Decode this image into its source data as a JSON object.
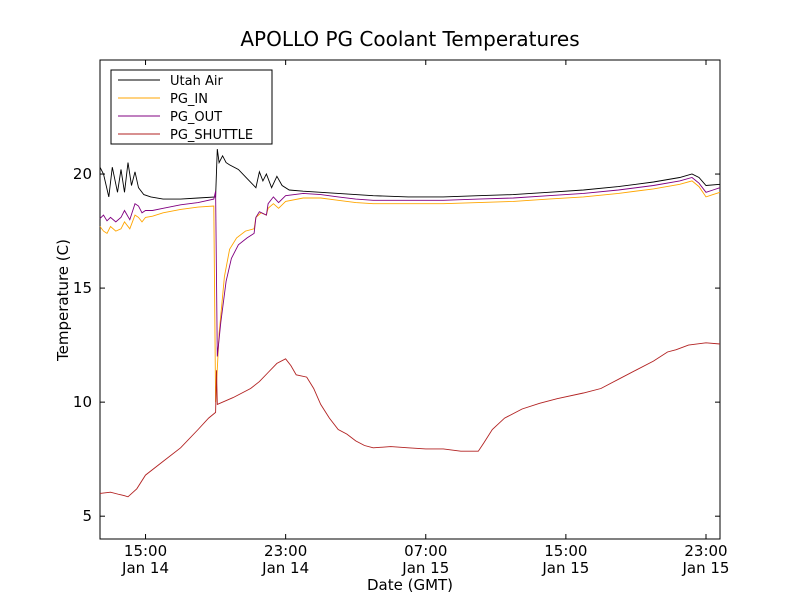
{
  "chart_data": {
    "type": "line",
    "title": "APOLLO PG Coolant Temperatures",
    "xlabel": "Date (GMT)",
    "ylabel": "Temperature (C)",
    "x_unit": "hour of day, Jan 14 (values above 24 fall on Jan 15)",
    "xlim": [
      12.4,
      47.8
    ],
    "ylim": [
      4,
      25
    ],
    "yticks": [
      5,
      10,
      15,
      20
    ],
    "xticks": [
      {
        "x": 15,
        "time": "15:00",
        "date": "Jan 14"
      },
      {
        "x": 23,
        "time": "23:00",
        "date": "Jan 14"
      },
      {
        "x": 31,
        "time": "07:00",
        "date": "Jan 15"
      },
      {
        "x": 39,
        "time": "15:00",
        "date": "Jan 15"
      },
      {
        "x": 47,
        "time": "23:00",
        "date": "Jan 15"
      }
    ],
    "grid": false,
    "legend_position": "upper-left",
    "series": [
      {
        "name": "Utah Air",
        "color": "#000000",
        "points": [
          [
            12.4,
            20.3
          ],
          [
            12.6,
            20.0
          ],
          [
            12.9,
            19.0
          ],
          [
            13.1,
            20.3
          ],
          [
            13.4,
            19.2
          ],
          [
            13.6,
            20.2
          ],
          [
            13.8,
            19.2
          ],
          [
            14.0,
            20.5
          ],
          [
            14.2,
            19.5
          ],
          [
            14.4,
            20.1
          ],
          [
            14.6,
            19.4
          ],
          [
            14.9,
            19.1
          ],
          [
            15.3,
            19.0
          ],
          [
            16.0,
            18.9
          ],
          [
            17.0,
            18.9
          ],
          [
            18.0,
            18.95
          ],
          [
            19.0,
            19.0
          ],
          [
            19.1,
            21.1
          ],
          [
            19.2,
            20.5
          ],
          [
            19.4,
            20.8
          ],
          [
            19.6,
            20.5
          ],
          [
            19.8,
            20.4
          ],
          [
            20.3,
            20.2
          ],
          [
            20.8,
            19.8
          ],
          [
            21.3,
            19.4
          ],
          [
            21.5,
            20.1
          ],
          [
            21.7,
            19.7
          ],
          [
            21.9,
            20.0
          ],
          [
            22.2,
            19.4
          ],
          [
            22.5,
            19.9
          ],
          [
            22.8,
            19.5
          ],
          [
            23.2,
            19.3
          ],
          [
            24.0,
            19.25
          ],
          [
            25.0,
            19.2
          ],
          [
            26.0,
            19.15
          ],
          [
            27.0,
            19.1
          ],
          [
            28.0,
            19.05
          ],
          [
            30.0,
            19.0
          ],
          [
            32.0,
            19.0
          ],
          [
            34.0,
            19.05
          ],
          [
            36.0,
            19.1
          ],
          [
            38.0,
            19.2
          ],
          [
            40.0,
            19.3
          ],
          [
            42.0,
            19.45
          ],
          [
            44.0,
            19.65
          ],
          [
            45.5,
            19.85
          ],
          [
            46.2,
            20.0
          ],
          [
            46.6,
            19.85
          ],
          [
            47.0,
            19.5
          ],
          [
            47.8,
            19.55
          ]
        ]
      },
      {
        "name": "PG_IN",
        "color": "#ffa500",
        "points": [
          [
            12.4,
            17.7
          ],
          [
            12.6,
            17.5
          ],
          [
            12.8,
            17.4
          ],
          [
            13.0,
            17.7
          ],
          [
            13.3,
            17.5
          ],
          [
            13.6,
            17.6
          ],
          [
            13.8,
            17.9
          ],
          [
            14.1,
            17.6
          ],
          [
            14.4,
            18.2
          ],
          [
            14.6,
            18.1
          ],
          [
            14.8,
            17.9
          ],
          [
            15.0,
            18.1
          ],
          [
            15.4,
            18.15
          ],
          [
            16.0,
            18.3
          ],
          [
            17.0,
            18.45
          ],
          [
            18.0,
            18.55
          ],
          [
            18.9,
            18.6
          ],
          [
            19.0,
            10.0
          ],
          [
            19.2,
            13.0
          ],
          [
            19.5,
            15.5
          ],
          [
            19.8,
            16.7
          ],
          [
            20.2,
            17.2
          ],
          [
            20.7,
            17.5
          ],
          [
            21.2,
            17.6
          ],
          [
            21.3,
            18.1
          ],
          [
            21.6,
            18.3
          ],
          [
            21.9,
            18.2
          ],
          [
            22.0,
            18.5
          ],
          [
            22.3,
            18.7
          ],
          [
            22.6,
            18.5
          ],
          [
            23.0,
            18.8
          ],
          [
            24.0,
            18.95
          ],
          [
            25.0,
            18.95
          ],
          [
            26.0,
            18.85
          ],
          [
            27.0,
            18.75
          ],
          [
            28.0,
            18.7
          ],
          [
            30.0,
            18.7
          ],
          [
            32.0,
            18.7
          ],
          [
            34.0,
            18.75
          ],
          [
            36.0,
            18.8
          ],
          [
            38.0,
            18.9
          ],
          [
            40.0,
            19.0
          ],
          [
            42.0,
            19.15
          ],
          [
            44.0,
            19.35
          ],
          [
            45.5,
            19.55
          ],
          [
            46.2,
            19.7
          ],
          [
            46.6,
            19.45
          ],
          [
            47.0,
            19.0
          ],
          [
            47.4,
            19.1
          ],
          [
            47.8,
            19.2
          ]
        ]
      },
      {
        "name": "PG_OUT",
        "color": "#800080",
        "points": [
          [
            12.4,
            18.05
          ],
          [
            12.6,
            18.2
          ],
          [
            12.8,
            17.95
          ],
          [
            13.0,
            18.1
          ],
          [
            13.3,
            17.9
          ],
          [
            13.6,
            18.1
          ],
          [
            13.8,
            18.4
          ],
          [
            14.1,
            18.0
          ],
          [
            14.4,
            18.7
          ],
          [
            14.6,
            18.6
          ],
          [
            14.8,
            18.3
          ],
          [
            15.0,
            18.4
          ],
          [
            15.4,
            18.4
          ],
          [
            16.0,
            18.5
          ],
          [
            17.0,
            18.65
          ],
          [
            18.0,
            18.75
          ],
          [
            18.9,
            18.9
          ],
          [
            19.0,
            19.25
          ],
          [
            19.1,
            12.0
          ],
          [
            19.3,
            13.5
          ],
          [
            19.6,
            15.3
          ],
          [
            19.9,
            16.3
          ],
          [
            20.3,
            16.9
          ],
          [
            20.8,
            17.2
          ],
          [
            21.2,
            17.4
          ],
          [
            21.3,
            18.1
          ],
          [
            21.5,
            18.35
          ],
          [
            21.9,
            18.2
          ],
          [
            22.0,
            18.7
          ],
          [
            22.3,
            19.0
          ],
          [
            22.6,
            18.75
          ],
          [
            23.0,
            19.05
          ],
          [
            24.0,
            19.15
          ],
          [
            25.0,
            19.1
          ],
          [
            26.0,
            19.0
          ],
          [
            27.0,
            18.9
          ],
          [
            28.0,
            18.85
          ],
          [
            30.0,
            18.85
          ],
          [
            32.0,
            18.85
          ],
          [
            34.0,
            18.9
          ],
          [
            36.0,
            18.95
          ],
          [
            38.0,
            19.05
          ],
          [
            40.0,
            19.15
          ],
          [
            42.0,
            19.3
          ],
          [
            44.0,
            19.5
          ],
          [
            45.5,
            19.7
          ],
          [
            46.2,
            19.85
          ],
          [
            46.6,
            19.6
          ],
          [
            47.0,
            19.2
          ],
          [
            47.4,
            19.3
          ],
          [
            47.8,
            19.4
          ]
        ]
      },
      {
        "name": "PG_SHUTTLE",
        "color": "#b22222",
        "points": [
          [
            12.4,
            6.0
          ],
          [
            13.0,
            6.05
          ],
          [
            13.5,
            5.95
          ],
          [
            13.8,
            5.9
          ],
          [
            14.0,
            5.85
          ],
          [
            14.5,
            6.2
          ],
          [
            15.0,
            6.8
          ],
          [
            16.0,
            7.4
          ],
          [
            17.0,
            8.0
          ],
          [
            18.0,
            8.8
          ],
          [
            18.6,
            9.3
          ],
          [
            19.0,
            9.55
          ],
          [
            19.05,
            11.4
          ],
          [
            19.1,
            9.9
          ],
          [
            20.0,
            10.2
          ],
          [
            21.0,
            10.6
          ],
          [
            21.5,
            10.9
          ],
          [
            22.0,
            11.3
          ],
          [
            22.5,
            11.7
          ],
          [
            23.0,
            11.9
          ],
          [
            23.3,
            11.6
          ],
          [
            23.6,
            11.2
          ],
          [
            24.2,
            11.1
          ],
          [
            24.6,
            10.6
          ],
          [
            25.0,
            9.9
          ],
          [
            25.5,
            9.3
          ],
          [
            26.0,
            8.8
          ],
          [
            26.5,
            8.6
          ],
          [
            27.0,
            8.3
          ],
          [
            27.5,
            8.1
          ],
          [
            28.0,
            8.0
          ],
          [
            29.0,
            8.05
          ],
          [
            30.0,
            8.0
          ],
          [
            31.0,
            7.95
          ],
          [
            32.0,
            7.95
          ],
          [
            33.0,
            7.85
          ],
          [
            34.0,
            7.85
          ],
          [
            34.3,
            8.2
          ],
          [
            34.8,
            8.8
          ],
          [
            35.5,
            9.3
          ],
          [
            36.5,
            9.7
          ],
          [
            37.5,
            9.95
          ],
          [
            38.5,
            10.15
          ],
          [
            40.0,
            10.4
          ],
          [
            41.0,
            10.6
          ],
          [
            42.0,
            11.0
          ],
          [
            43.0,
            11.4
          ],
          [
            44.0,
            11.8
          ],
          [
            44.8,
            12.2
          ],
          [
            45.3,
            12.3
          ],
          [
            46.0,
            12.5
          ],
          [
            47.0,
            12.6
          ],
          [
            47.8,
            12.55
          ]
        ]
      }
    ]
  }
}
